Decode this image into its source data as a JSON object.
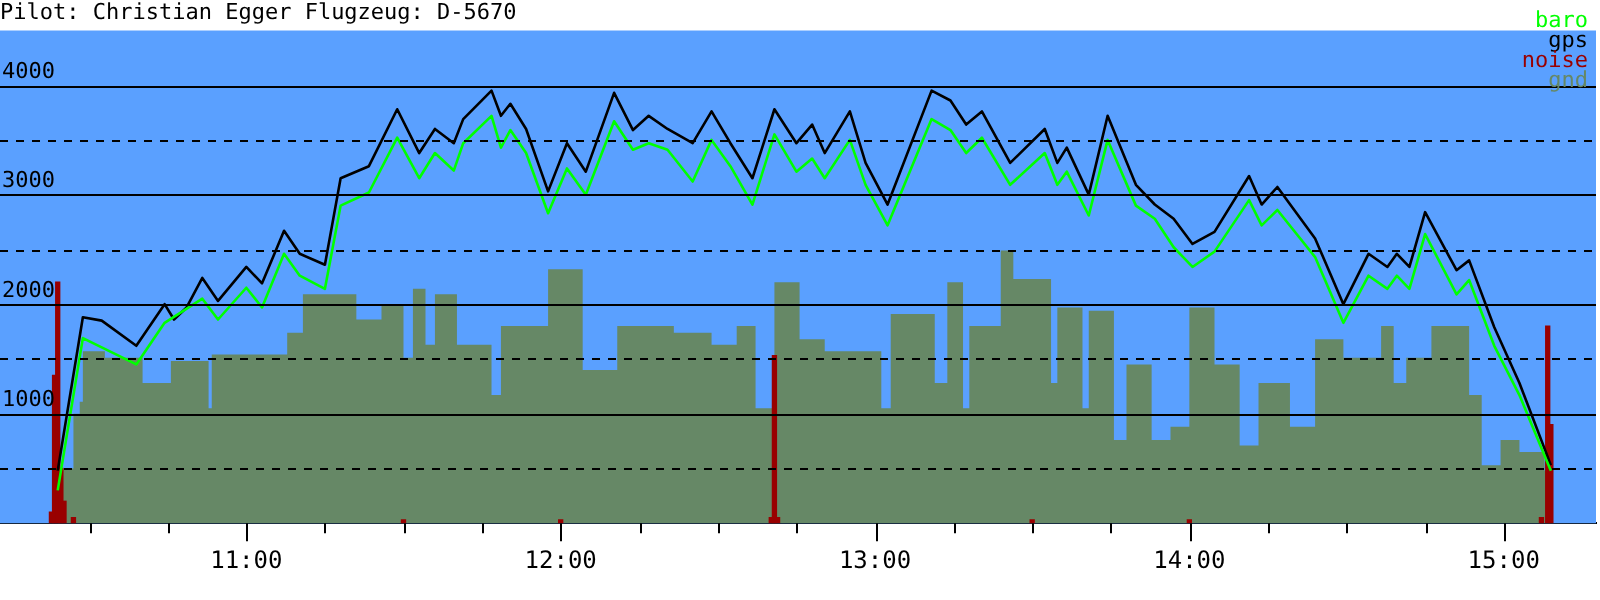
{
  "chart_data": {
    "type": "line",
    "title": "Pilot: Christian Egger Flugzeug: D-5670",
    "xlim": [
      10.35,
      15.16
    ],
    "ylim": [
      0,
      4500
    ],
    "xticks": [
      {
        "value": 10.5,
        "label": null
      },
      {
        "value": 10.75,
        "label": null
      },
      {
        "value": 11,
        "label": "11:00"
      },
      {
        "value": 11.25,
        "label": null
      },
      {
        "value": 11.5,
        "label": null
      },
      {
        "value": 11.75,
        "label": null
      },
      {
        "value": 12,
        "label": "12:00"
      },
      {
        "value": 12.25,
        "label": null
      },
      {
        "value": 12.5,
        "label": null
      },
      {
        "value": 12.75,
        "label": null
      },
      {
        "value": 13,
        "label": "13:00"
      },
      {
        "value": 13.25,
        "label": null
      },
      {
        "value": 13.5,
        "label": null
      },
      {
        "value": 13.75,
        "label": null
      },
      {
        "value": 14,
        "label": "14:00"
      },
      {
        "value": 14.25,
        "label": null
      },
      {
        "value": 14.5,
        "label": null
      },
      {
        "value": 14.75,
        "label": null
      },
      {
        "value": 15,
        "label": "15:00"
      }
    ],
    "yticks": [
      {
        "value": 500,
        "label": null
      },
      1000,
      {
        "value": 1500,
        "label": null
      },
      2000,
      {
        "value": 2500,
        "label": null
      },
      3000,
      {
        "value": 3500,
        "label": null
      },
      4000
    ],
    "grid": "y",
    "legend": "top right",
    "series": [
      {
        "name": "baro",
        "color": "#00ff00",
        "x": [
          10.4,
          10.48,
          10.65,
          10.74,
          10.86,
          10.91,
          11.0,
          11.05,
          11.12,
          11.17,
          11.25,
          11.3,
          11.39,
          11.48,
          11.55,
          11.6,
          11.66,
          11.69,
          11.78,
          11.81,
          11.84,
          11.89,
          11.96,
          12.02,
          12.08,
          12.17,
          12.23,
          12.28,
          12.34,
          12.42,
          12.48,
          12.54,
          12.61,
          12.68,
          12.75,
          12.8,
          12.84,
          12.92,
          12.97,
          13.04,
          13.18,
          13.24,
          13.29,
          13.34,
          13.43,
          13.54,
          13.58,
          13.61,
          13.68,
          13.74,
          13.83,
          13.89,
          13.95,
          14.01,
          14.08,
          14.19,
          14.23,
          14.28,
          14.4,
          14.49,
          14.57,
          14.63,
          14.66,
          14.7,
          14.75,
          14.85,
          14.89,
          14.97,
          15.05,
          15.15
        ],
        "values": [
          300,
          1690,
          1450,
          1830,
          2050,
          1860,
          2150,
          1970,
          2460,
          2260,
          2140,
          2900,
          3020,
          3520,
          3150,
          3380,
          3220,
          3470,
          3720,
          3430,
          3590,
          3380,
          2830,
          3240,
          3000,
          3670,
          3410,
          3470,
          3410,
          3120,
          3500,
          3260,
          2910,
          3550,
          3210,
          3330,
          3150,
          3500,
          3090,
          2720,
          3690,
          3590,
          3380,
          3520,
          3090,
          3380,
          3090,
          3210,
          2810,
          3500,
          2900,
          2780,
          2520,
          2340,
          2480,
          2950,
          2720,
          2860,
          2430,
          1830,
          2260,
          2140,
          2260,
          2140,
          2640,
          2090,
          2220,
          1620,
          1170,
          480
        ]
      },
      {
        "name": "gps",
        "color": "#000000",
        "x": [
          10.4,
          10.48,
          10.54,
          10.65,
          10.74,
          10.77,
          10.81,
          10.86,
          10.91,
          11.0,
          11.05,
          11.12,
          11.17,
          11.25,
          11.3,
          11.39,
          11.48,
          11.55,
          11.6,
          11.66,
          11.69,
          11.78,
          11.81,
          11.84,
          11.89,
          11.96,
          12.02,
          12.08,
          12.17,
          12.23,
          12.28,
          12.34,
          12.42,
          12.48,
          12.54,
          12.61,
          12.68,
          12.75,
          12.8,
          12.84,
          12.92,
          12.97,
          13.04,
          13.18,
          13.24,
          13.29,
          13.34,
          13.43,
          13.54,
          13.58,
          13.61,
          13.68,
          13.74,
          13.83,
          13.89,
          13.95,
          14.01,
          14.08,
          14.19,
          14.23,
          14.28,
          14.4,
          14.49,
          14.57,
          14.63,
          14.66,
          14.7,
          14.75,
          14.85,
          14.89,
          14.97,
          15.05,
          15.15
        ],
        "values": [
          480,
          1880,
          1850,
          1620,
          2000,
          1860,
          1970,
          2240,
          2030,
          2340,
          2190,
          2670,
          2460,
          2360,
          3150,
          3260,
          3780,
          3380,
          3600,
          3470,
          3690,
          3950,
          3720,
          3830,
          3600,
          3030,
          3470,
          3210,
          3930,
          3590,
          3720,
          3600,
          3470,
          3760,
          3470,
          3150,
          3780,
          3470,
          3640,
          3380,
          3760,
          3290,
          2910,
          3950,
          3860,
          3640,
          3760,
          3290,
          3600,
          3290,
          3430,
          3000,
          3720,
          3090,
          2910,
          2780,
          2550,
          2660,
          3170,
          2910,
          3070,
          2600,
          2000,
          2460,
          2340,
          2460,
          2340,
          2840,
          2310,
          2400,
          1790,
          1280,
          530
        ]
      },
      {
        "name": "noise",
        "type": "bar",
        "color": "#990000",
        "x": [
          10.38,
          10.39,
          10.4,
          10.41,
          10.42,
          10.45,
          11.5,
          12.0,
          12.67,
          12.68,
          12.69,
          13.5,
          14.0,
          15.12,
          15.14,
          15.15
        ],
        "values": [
          100,
          1350,
          2200,
          500,
          200,
          50,
          30,
          30,
          50,
          1530,
          50,
          30,
          30,
          50,
          1800,
          900
        ]
      },
      {
        "name": "gnd",
        "type": "area",
        "color": "#668866",
        "x": [
          10.36,
          10.4,
          10.45,
          10.47,
          10.48,
          10.55,
          10.67,
          10.76,
          10.88,
          10.89,
          11.13,
          11.18,
          11.35,
          11.43,
          11.5,
          11.53,
          11.57,
          11.6,
          11.67,
          11.78,
          11.81,
          11.96,
          12.07,
          12.18,
          12.36,
          12.48,
          12.56,
          12.62,
          12.68,
          12.76,
          12.84,
          13.02,
          13.05,
          13.19,
          13.23,
          13.28,
          13.3,
          13.4,
          13.44,
          13.56,
          13.58,
          13.66,
          13.68,
          13.76,
          13.8,
          13.88,
          13.94,
          14.0,
          14.08,
          14.16,
          14.22,
          14.32,
          14.4,
          14.49,
          14.61,
          14.65,
          14.69,
          14.77,
          14.89,
          14.93,
          14.99,
          15.05,
          15.13,
          15.15
        ],
        "values": [
          0,
          500,
          1000,
          1110,
          1570,
          1510,
          1280,
          1480,
          1050,
          1540,
          1740,
          2090,
          1860,
          2000,
          1510,
          2140,
          1630,
          2090,
          1630,
          1170,
          1800,
          2320,
          1400,
          1800,
          1740,
          1630,
          1800,
          1050,
          2200,
          1680,
          1570,
          1050,
          1910,
          1280,
          2200,
          1050,
          1800,
          2490,
          2230,
          1280,
          1970,
          1050,
          1940,
          760,
          1450,
          760,
          880,
          1970,
          1450,
          710,
          1280,
          880,
          1680,
          1510,
          1800,
          1280,
          1510,
          1800,
          1170,
          530,
          760,
          650,
          480,
          0
        ]
      }
    ]
  }
}
